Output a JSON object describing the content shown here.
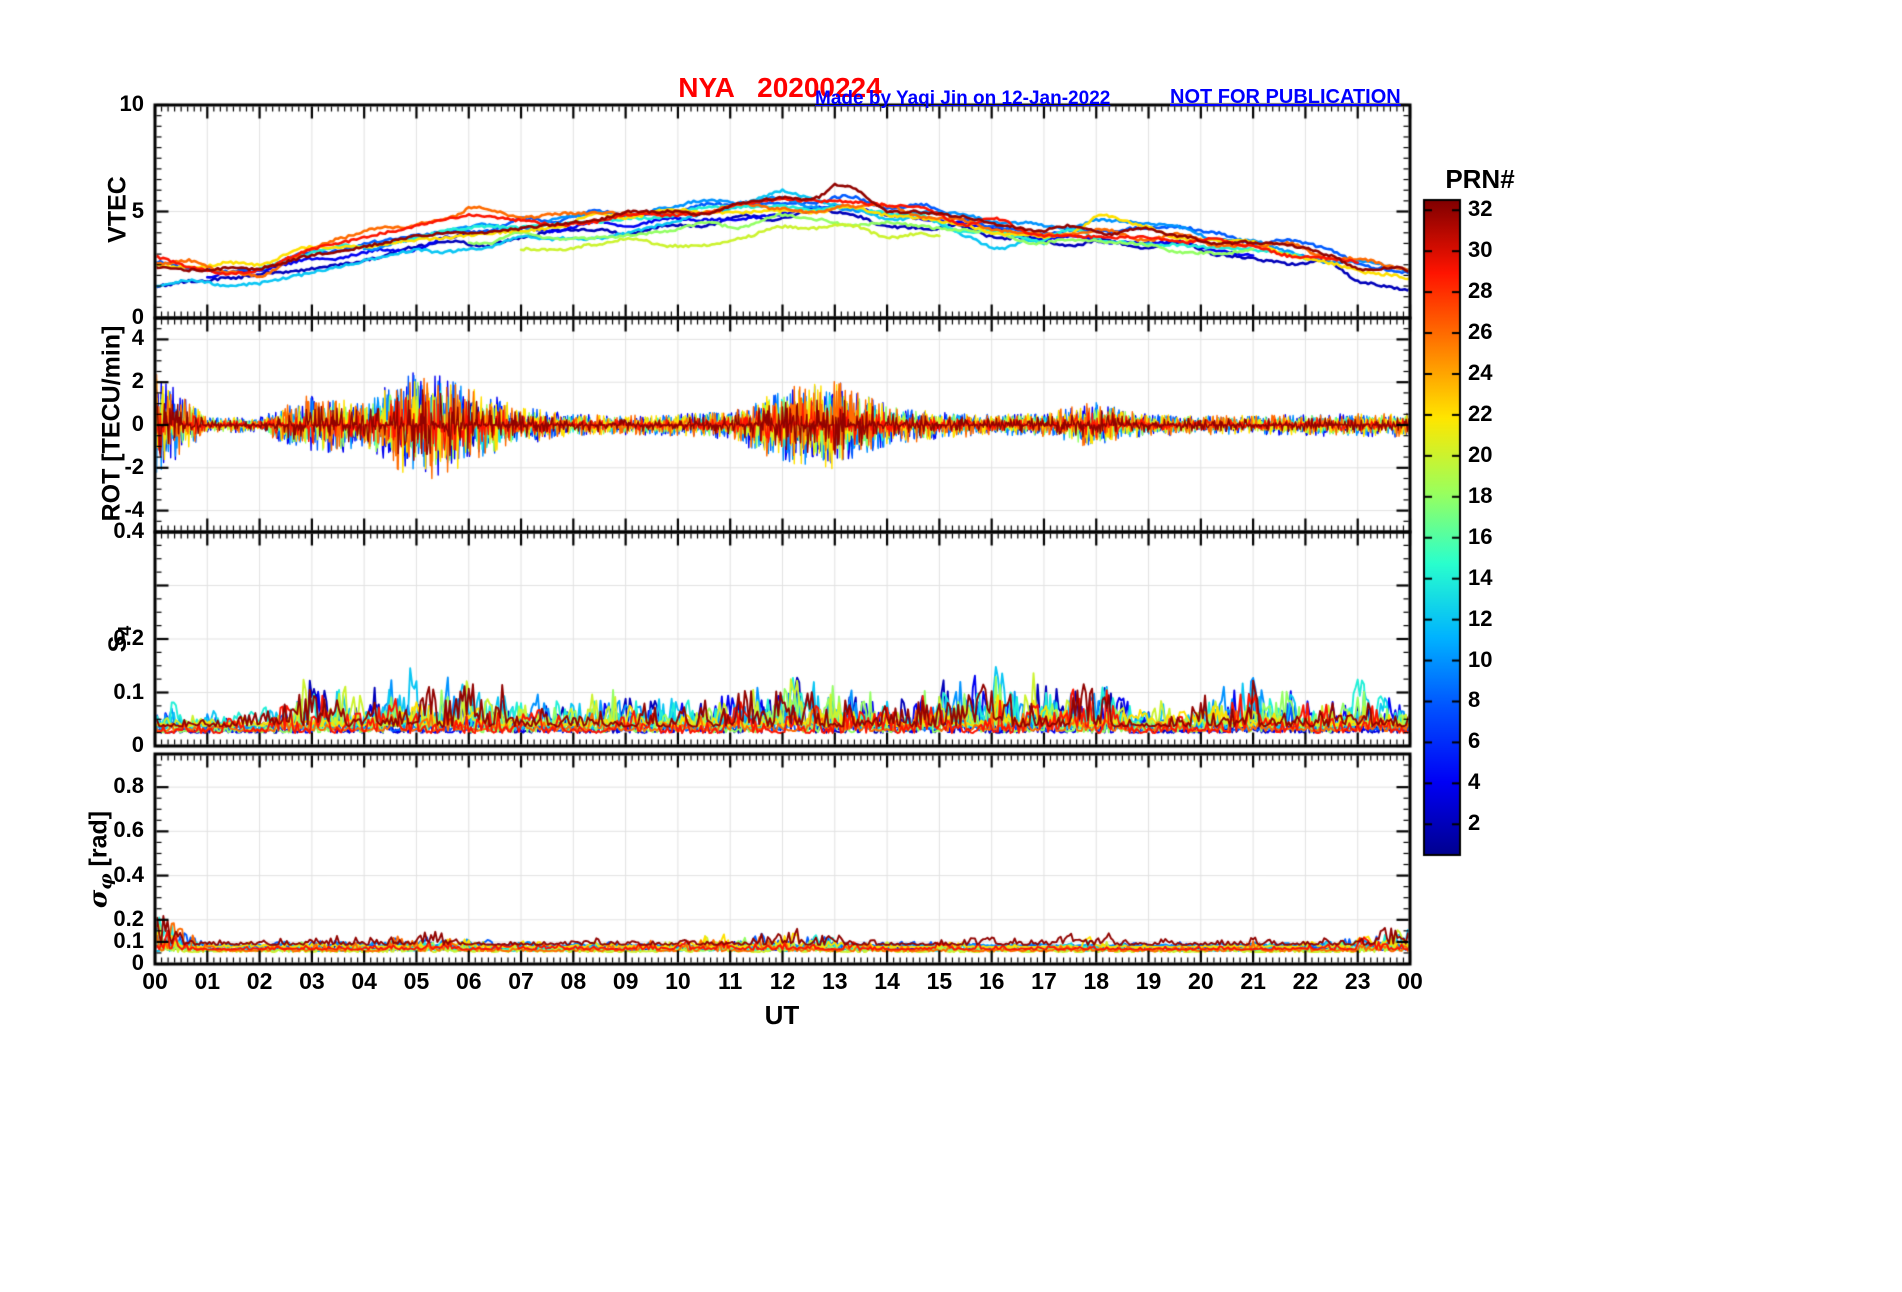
{
  "header": {
    "title": "NYA   20200224",
    "title_color": "#FF0000",
    "credit": "Made by Yaqi Jin on 12-Jan-2022",
    "warning": "NOT FOR PUBLICATION",
    "annotation_color": "#0000FF"
  },
  "xaxis": {
    "label": "UT",
    "range": [
      0,
      24
    ],
    "ticks": [
      "00",
      "01",
      "02",
      "03",
      "04",
      "05",
      "06",
      "07",
      "08",
      "09",
      "10",
      "11",
      "12",
      "13",
      "14",
      "15",
      "16",
      "17",
      "18",
      "19",
      "20",
      "21",
      "22",
      "23",
      "00"
    ]
  },
  "colorbar": {
    "label": "PRN#",
    "range": [
      1,
      32
    ],
    "ticks": [
      2,
      4,
      6,
      8,
      10,
      12,
      14,
      16,
      18,
      20,
      22,
      24,
      26,
      28,
      30,
      32
    ],
    "colormap": "jet",
    "colormap_stops": [
      "#00008F",
      "#0000F5",
      "#0050FF",
      "#00B4FF",
      "#29FFCE",
      "#9CFF5B",
      "#FFE600",
      "#FF7D00",
      "#FF1400",
      "#800000"
    ]
  },
  "chart_data": [
    {
      "type": "line",
      "panel": "VTEC",
      "ylabel": "VTEC",
      "ylabel_sym": "VTEC",
      "ylim": [
        0,
        10
      ],
      "yticks": [
        0,
        5,
        10
      ],
      "x_hours": [
        0,
        1,
        2,
        3,
        4,
        5,
        6,
        7,
        8,
        9,
        10,
        11,
        12,
        13,
        14,
        15,
        16,
        17,
        18,
        19,
        20,
        21,
        22,
        23,
        24
      ],
      "series": [
        {
          "prn": 2,
          "window": [
            0,
            24
          ],
          "values": [
            1.8,
            1.7,
            1.8,
            2.4,
            2.8,
            3.2,
            3.5,
            3.7,
            4.0,
            4.2,
            4.4,
            4.6,
            4.8,
            4.9,
            4.6,
            4.2,
            3.8,
            3.5,
            3.6,
            3.4,
            3.2,
            3.0,
            2.6,
            2.0,
            1.5
          ]
        },
        {
          "prn": 4,
          "window": [
            1,
            21
          ],
          "values": [
            2.0,
            1.9,
            2.0,
            2.6,
            3.0,
            3.4,
            3.7,
            3.9,
            4.2,
            4.4,
            4.6,
            4.8,
            5.0,
            5.1,
            4.8,
            4.4,
            4.0,
            3.7,
            3.8,
            3.6,
            3.4,
            3.2,
            2.8,
            2.2,
            1.7
          ]
        },
        {
          "prn": 8,
          "window": [
            0,
            24
          ],
          "values": [
            2.5,
            2.4,
            2.5,
            3.1,
            3.5,
            3.9,
            4.2,
            4.4,
            4.7,
            4.9,
            5.1,
            5.3,
            5.5,
            5.6,
            5.3,
            4.9,
            4.5,
            4.2,
            4.3,
            4.1,
            3.9,
            3.7,
            3.3,
            2.7,
            2.2
          ]
        },
        {
          "prn": 10,
          "window": [
            4,
            24
          ],
          "values": [
            2.3,
            2.2,
            2.3,
            2.9,
            3.3,
            3.7,
            4.0,
            4.3,
            4.6,
            4.9,
            5.2,
            5.4,
            5.5,
            5.4,
            5.1,
            4.8,
            4.4,
            4.1,
            4.5,
            4.3,
            3.9,
            3.6,
            3.1,
            2.6,
            2.1
          ]
        },
        {
          "prn": 12,
          "window": [
            0,
            17
          ],
          "values": [
            1.6,
            1.5,
            1.6,
            2.2,
            2.6,
            3.0,
            3.3,
            3.5,
            3.8,
            4.0,
            4.5,
            5.0,
            5.8,
            5.2,
            4.8,
            4.4,
            3.6,
            3.3,
            3.4,
            3.2,
            3.0,
            2.8,
            2.4,
            1.8,
            1.3
          ]
        },
        {
          "prn": 14,
          "window": [
            2,
            22
          ],
          "values": [
            2.4,
            2.3,
            2.4,
            3.0,
            3.4,
            3.8,
            4.1,
            4.3,
            4.6,
            4.8,
            5.0,
            5.2,
            5.3,
            5.2,
            4.9,
            4.5,
            4.1,
            3.8,
            3.9,
            3.7,
            3.5,
            3.3,
            2.9,
            2.3,
            1.8
          ]
        },
        {
          "prn": 18,
          "window": [
            6,
            21
          ],
          "values": [
            2.2,
            2.1,
            2.2,
            2.8,
            3.2,
            3.5,
            3.7,
            3.8,
            3.9,
            4.0,
            4.2,
            4.4,
            4.6,
            4.5,
            4.3,
            4.0,
            3.8,
            3.6,
            3.5,
            3.4,
            3.3,
            3.1,
            2.8,
            2.3,
            1.9
          ]
        },
        {
          "prn": 20,
          "window": [
            7,
            15
          ],
          "values": [
            2.1,
            2.0,
            2.1,
            2.6,
            2.9,
            3.1,
            3.2,
            3.3,
            3.4,
            3.5,
            3.6,
            3.8,
            4.2,
            4.3,
            4.1,
            3.8,
            3.4,
            3.1,
            3.0,
            2.9,
            2.8,
            2.7,
            2.5,
            2.1,
            1.8
          ]
        },
        {
          "prn": 22,
          "window": [
            0,
            24
          ],
          "values": [
            2.6,
            2.5,
            2.6,
            3.2,
            3.6,
            3.9,
            4.1,
            4.3,
            4.5,
            4.7,
            4.9,
            5.0,
            5.1,
            5.0,
            4.8,
            4.5,
            4.2,
            3.9,
            4.6,
            4.2,
            3.8,
            3.5,
            3.0,
            2.5,
            2.0
          ]
        },
        {
          "prn": 26,
          "window": [
            0,
            24
          ],
          "values": [
            2.8,
            2.3,
            2.2,
            3.3,
            3.9,
            4.6,
            5.1,
            4.6,
            4.8,
            5.0,
            5.1,
            5.2,
            5.3,
            5.2,
            5.0,
            4.7,
            4.3,
            4.0,
            4.1,
            3.9,
            3.7,
            3.5,
            3.1,
            2.6,
            2.2
          ]
        },
        {
          "prn": 29,
          "window": [
            0,
            23
          ],
          "values": [
            2.7,
            2.2,
            2.1,
            3.0,
            3.5,
            4.2,
            4.6,
            4.4,
            4.6,
            4.8,
            5.0,
            5.2,
            5.4,
            5.3,
            5.1,
            4.8,
            4.4,
            4.1,
            4.0,
            3.8,
            3.6,
            3.4,
            3.0,
            2.5,
            2.1
          ]
        },
        {
          "prn": 32,
          "window": [
            0,
            24
          ],
          "values": [
            2.2,
            2.1,
            2.2,
            2.9,
            3.3,
            3.7,
            4.0,
            4.2,
            4.5,
            4.7,
            4.9,
            5.1,
            5.4,
            6.2,
            5.2,
            4.8,
            4.4,
            4.1,
            4.2,
            4.0,
            3.8,
            3.6,
            3.2,
            2.6,
            2.1
          ]
        }
      ]
    },
    {
      "type": "line",
      "panel": "ROT",
      "ylabel": "ROT [TECU/min]",
      "ylabel_sym": "ROT [TECU/min]",
      "ylim": [
        -5,
        5
      ],
      "yticks": [
        -4,
        -2,
        0,
        2,
        4
      ],
      "x_hours": [
        0,
        1,
        2,
        3,
        4,
        5,
        6,
        7,
        8,
        9,
        10,
        11,
        12,
        13,
        14,
        15,
        16,
        17,
        18,
        19,
        20,
        21,
        22,
        23,
        24
      ],
      "mean": 0,
      "prns": [
        2,
        4,
        8,
        10,
        12,
        14,
        18,
        20,
        22,
        26,
        29,
        32
      ],
      "noise_envelope": [
        2.2,
        0.35,
        0.3,
        1.3,
        1.0,
        2.4,
        1.7,
        0.8,
        0.45,
        0.4,
        0.45,
        0.6,
        1.6,
        1.9,
        0.9,
        0.55,
        0.45,
        0.5,
        1.0,
        0.45,
        0.4,
        0.4,
        0.45,
        0.5,
        0.5
      ]
    },
    {
      "type": "line",
      "panel": "S4",
      "ylabel": "S4",
      "ylabel_sym": "S",
      "ylabel_sub": "4",
      "ylim": [
        0,
        0.4
      ],
      "yticks": [
        0,
        0.1,
        0.2,
        0.4
      ],
      "ytickmarks": [
        0,
        0.1,
        0.2,
        0.3,
        0.4
      ],
      "x_hours": [
        0,
        1,
        2,
        3,
        4,
        5,
        6,
        7,
        8,
        9,
        10,
        11,
        12,
        13,
        14,
        15,
        16,
        17,
        18,
        19,
        20,
        21,
        22,
        23,
        24
      ],
      "baseline": 0.03,
      "prns": [
        2,
        4,
        8,
        10,
        12,
        14,
        18,
        20,
        22,
        26,
        29,
        32
      ],
      "noise_envelope": [
        0.06,
        0.05,
        0.05,
        0.09,
        0.07,
        0.1,
        0.09,
        0.07,
        0.06,
        0.08,
        0.07,
        0.08,
        0.08,
        0.09,
        0.07,
        0.08,
        0.1,
        0.08,
        0.09,
        0.06,
        0.07,
        0.1,
        0.07,
        0.08,
        0.07
      ]
    },
    {
      "type": "line",
      "panel": "sigma_phi",
      "ylabel": "sigma_phi [rad]",
      "ylabel_sym": "σ",
      "ylabel_sub": "φ",
      "ylabel_unit": " [rad]",
      "ylim": [
        0,
        0.95
      ],
      "yticks": [
        0,
        0.1,
        0.2,
        0.4,
        0.6,
        0.8
      ],
      "x_hours": [
        0,
        1,
        2,
        3,
        4,
        5,
        6,
        7,
        8,
        9,
        10,
        11,
        12,
        13,
        14,
        15,
        16,
        17,
        18,
        19,
        20,
        21,
        22,
        23,
        24
      ],
      "baseline": 0.07,
      "prns": [
        2,
        4,
        8,
        10,
        12,
        14,
        18,
        20,
        22,
        26,
        29,
        32
      ],
      "noise_envelope": [
        0.22,
        0.09,
        0.09,
        0.11,
        0.1,
        0.11,
        0.11,
        0.1,
        0.09,
        0.1,
        0.1,
        0.13,
        0.13,
        0.11,
        0.1,
        0.1,
        0.09,
        0.09,
        0.11,
        0.09,
        0.09,
        0.1,
        0.1,
        0.12,
        0.16
      ]
    }
  ]
}
